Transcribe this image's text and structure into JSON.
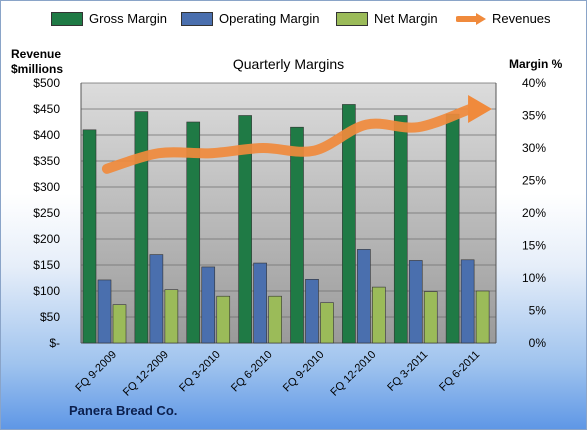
{
  "chart_data": {
    "type": "bar",
    "title": "Quarterly Margins",
    "ylabel_left": [
      "Revenue",
      "$millions"
    ],
    "ylabel_right": "Margin %",
    "categories": [
      "FQ 9-2009",
      "FQ 12-2009",
      "FQ 3-2010",
      "FQ 6-2010",
      "FQ 9-2010",
      "FQ 12-2010",
      "FQ 3-2011",
      "FQ 6-2011"
    ],
    "y_left_lim": [
      0,
      500
    ],
    "y_left_ticks": [
      "$-",
      "$50",
      "$100",
      "$150",
      "$200",
      "$250",
      "$300",
      "$350",
      "$400",
      "$450",
      "$500"
    ],
    "y_right_lim": [
      0,
      40
    ],
    "y_right_ticks": [
      "0%",
      "5%",
      "10%",
      "15%",
      "20%",
      "25%",
      "30%",
      "35%",
      "40%"
    ],
    "series": [
      {
        "name": "Gross Margin",
        "axis": "right",
        "kind": "bar",
        "color": "#1f7a45",
        "values": [
          32.8,
          35.6,
          34.0,
          35.0,
          33.2,
          36.7,
          35.0,
          35.2
        ]
      },
      {
        "name": "Operating Margin",
        "axis": "right",
        "kind": "bar",
        "color": "#4a6fae",
        "values": [
          9.7,
          13.6,
          11.7,
          12.3,
          9.8,
          14.4,
          12.7,
          12.8
        ]
      },
      {
        "name": "Net Margin",
        "axis": "right",
        "kind": "bar",
        "color": "#9bbb59",
        "values": [
          5.9,
          8.2,
          7.2,
          7.2,
          6.2,
          8.6,
          7.9,
          8.0
        ]
      },
      {
        "name": "Revenues",
        "axis": "left",
        "kind": "line",
        "color": "#f08a3c",
        "values": [
          335,
          365,
          365,
          375,
          370,
          420,
          415,
          450
        ]
      }
    ],
    "grid": true,
    "legend": "top"
  },
  "footer": "Panera Bread Co."
}
